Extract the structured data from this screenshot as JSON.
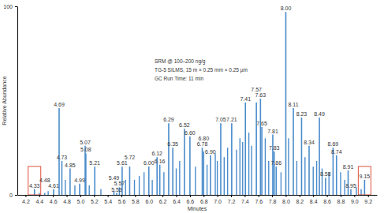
{
  "chart_data": {
    "type": "stick",
    "x_label": "Minutes",
    "y_label": "Relative Abundance",
    "annotations": [
      "SRM @ 100–200 ng/g",
      "TG-5 SILMS, 15 m × 0.25 mm × 0.25 µm",
      "GC Run Time: 11 min"
    ],
    "x": [
      4.33,
      4.48,
      4.61,
      4.69,
      4.73,
      4.85,
      4.99,
      5.07,
      5.08,
      5.21,
      5.49,
      5.53,
      5.57,
      5.61,
      5.72,
      6.0,
      6.12,
      6.16,
      6.29,
      6.35,
      6.52,
      6.6,
      6.78,
      6.8,
      6.9,
      7.05,
      7.21,
      7.41,
      7.57,
      7.63,
      7.65,
      7.81,
      7.83,
      7.86,
      8.0,
      8.11,
      8.23,
      8.34,
      8.49,
      8.58,
      8.69,
      8.74,
      8.91,
      8.95,
      9.15
    ],
    "labels": [
      "4.33",
      "4.48",
      "4.61",
      "4.69",
      "4.73",
      "4.85",
      "4.99",
      "5.07",
      "5.08",
      "5.21",
      "5.49",
      "5.53",
      "5.57",
      "5.61",
      "5.72",
      "6.00",
      "6.12",
      "6.16",
      "6.29",
      "6.35",
      "6.52",
      "6.60",
      "6.78",
      "6.80",
      "6.90",
      "7.05",
      "7.21",
      "7.41",
      "7.57",
      "7.63",
      "7.65",
      "7.81",
      "7.83",
      "7.86",
      "8.00",
      "8.11",
      "8.23",
      "8.34",
      "8.49",
      "8.58",
      "8.69",
      "8.74",
      "8.91",
      "8.95",
      "9.15"
    ],
    "values": [
      3,
      1,
      3,
      46,
      18,
      14,
      6,
      26,
      22,
      15,
      2,
      1,
      4,
      15,
      15,
      15,
      20,
      16,
      38,
      25,
      35,
      31,
      25,
      23,
      21,
      38,
      38,
      49,
      49,
      51,
      36,
      32,
      23,
      15,
      97,
      46,
      41,
      26,
      41,
      9,
      25,
      21,
      13,
      3,
      8
    ],
    "minor_x": [
      4.4,
      4.53,
      4.78,
      4.92,
      5.13,
      5.3,
      5.66,
      5.79,
      5.86,
      5.93,
      6.05,
      6.22,
      6.4,
      6.45,
      6.68,
      6.85,
      6.97,
      7.0,
      7.1,
      7.15,
      7.28,
      7.33,
      7.37,
      7.46,
      7.5,
      7.7,
      7.75,
      7.93,
      8.04,
      8.16,
      8.28,
      8.4,
      8.45,
      8.53,
      8.63,
      8.8,
      8.86,
      9.03,
      9.1
    ],
    "minor_values": [
      1,
      2,
      8,
      5,
      5,
      3,
      8,
      8,
      10,
      12,
      8,
      12,
      14,
      18,
      15,
      16,
      22,
      18,
      20,
      25,
      24,
      30,
      28,
      33,
      26,
      30,
      18,
      12,
      30,
      18,
      20,
      15,
      18,
      14,
      12,
      12,
      8,
      4,
      3
    ],
    "highlight_x": [
      4.33,
      9.15
    ],
    "color": "#4a8ccc",
    "xlim": [
      4.08,
      9.33
    ],
    "xticks": [
      4.2,
      4.4,
      4.6,
      4.8,
      {
        "value": 5,
        "label": "5.0"
      },
      5.2,
      5.4,
      5.6,
      5.8,
      {
        "value": 6,
        "label": "6.0"
      },
      6.2,
      6.4,
      6.6,
      6.8,
      {
        "value": 7,
        "label": "7.0"
      },
      7.2,
      7.4,
      7.6,
      7.8,
      {
        "value": 8,
        "label": "8.0"
      },
      8.2,
      8.4,
      8.6,
      8.8,
      {
        "value": 9,
        "label": "9.0"
      },
      9.2
    ],
    "ylim": [
      0,
      100
    ],
    "yticks": [
      0,
      100
    ],
    "grid": false
  }
}
